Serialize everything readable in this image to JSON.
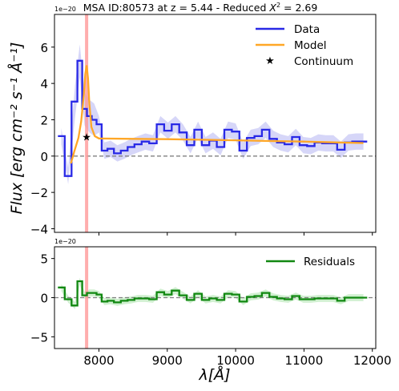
{
  "chart_data": [
    {
      "type": "line",
      "panel": "top",
      "title": "MSA ID:80573 at z = 5.44 - Reduced X² = 2.69",
      "title_main": "MSA ID:80573 at z = 5.44 - Reduced ",
      "title_chi": "X",
      "title_sup": "2",
      "title_end": " = 2.69",
      "offset_text": "1e−20",
      "ylabel": "Flux [erg cm⁻² s⁻¹ Å⁻¹]",
      "ylim": [
        -4.2,
        7.8
      ],
      "xlim": [
        7350,
        12050
      ],
      "y_ticks": [
        {
          "value": -4,
          "label": "−4"
        },
        {
          "value": -2,
          "label": "−2"
        },
        {
          "value": 0,
          "label": "0"
        },
        {
          "value": 2,
          "label": "2"
        },
        {
          "value": 4,
          "label": "4"
        },
        {
          "value": 6,
          "label": "6"
        }
      ],
      "reference_line_y": 0,
      "emission_line_x": 7820,
      "colors": {
        "data": "#2929e6",
        "model": "#ffa726",
        "band": "#c8c8f5",
        "emission": "#ff9999",
        "zero": "#808080"
      },
      "legend": [
        {
          "label": "Data",
          "kind": "line",
          "color": "#2929e6"
        },
        {
          "label": "Model",
          "kind": "line",
          "color": "#ffa726"
        },
        {
          "label": "Continuum",
          "kind": "star",
          "color": "#000000"
        }
      ],
      "series": [
        {
          "name": "Data",
          "style": "steps",
          "x": [
            7450,
            7550,
            7650,
            7720,
            7790,
            7860,
            7930,
            8000,
            8080,
            8170,
            8270,
            8370,
            8470,
            8570,
            8680,
            8790,
            8900,
            9010,
            9120,
            9230,
            9340,
            9450,
            9560,
            9670,
            9780,
            9890,
            10000,
            10110,
            10220,
            10330,
            10440,
            10550,
            10660,
            10770,
            10880,
            10990,
            11100,
            11210,
            11320,
            11430,
            11540,
            11650,
            11760,
            11870
          ],
          "y": [
            1.1,
            -1.1,
            3.0,
            5.25,
            2.6,
            2.2,
            2.0,
            1.75,
            0.3,
            0.4,
            0.15,
            0.3,
            0.5,
            0.65,
            0.8,
            0.7,
            1.75,
            1.4,
            1.75,
            1.3,
            0.6,
            1.45,
            0.6,
            0.85,
            0.5,
            1.45,
            1.35,
            0.3,
            1.0,
            1.1,
            1.45,
            0.95,
            0.75,
            0.65,
            1.05,
            0.6,
            0.55,
            0.75,
            0.7,
            0.7,
            0.35,
            0.75,
            0.8,
            0.8
          ]
        },
        {
          "name": "Model",
          "style": "line",
          "x": [
            7590,
            7640,
            7700,
            7740,
            7780,
            7800,
            7820,
            7840,
            7860,
            7890,
            7940,
            8000,
            8500,
            9000,
            9500,
            10000,
            10500,
            11000,
            11500,
            11870
          ],
          "y": [
            -0.4,
            0.25,
            1.0,
            1.9,
            3.4,
            4.5,
            5.0,
            4.3,
            2.9,
            1.6,
            1.1,
            0.97,
            0.95,
            0.93,
            0.9,
            0.87,
            0.83,
            0.8,
            0.75,
            0.72
          ]
        },
        {
          "name": "Continuum",
          "style": "marker",
          "x": [
            7820
          ],
          "y": [
            1.05
          ]
        }
      ]
    },
    {
      "type": "line",
      "panel": "bottom",
      "offset_text": "1e−20",
      "xlabel": "λ[Å]",
      "ylim": [
        -6.5,
        6.5
      ],
      "xlim": [
        7350,
        12050
      ],
      "x_ticks": [
        {
          "value": 8000,
          "label": "8000"
        },
        {
          "value": 9000,
          "label": "9000"
        },
        {
          "value": 10000,
          "label": "10000"
        },
        {
          "value": 11000,
          "label": "11000"
        },
        {
          "value": 12000,
          "label": "12000"
        }
      ],
      "y_ticks": [
        {
          "value": -5,
          "label": "−5"
        },
        {
          "value": 0,
          "label": "0"
        },
        {
          "value": 5,
          "label": "5"
        }
      ],
      "reference_line_y": 0,
      "emission_line_x": 7820,
      "colors": {
        "residuals": "#118811",
        "band": "#c5ecc5",
        "emission": "#ff9999",
        "zero": "#808080"
      },
      "legend": [
        {
          "label": "Residuals",
          "kind": "line",
          "color": "#118811"
        }
      ],
      "series": [
        {
          "name": "Residuals",
          "style": "steps",
          "x": [
            7450,
            7550,
            7650,
            7720,
            7790,
            7860,
            7930,
            8000,
            8080,
            8170,
            8270,
            8370,
            8470,
            8570,
            8680,
            8790,
            8900,
            9010,
            9120,
            9230,
            9340,
            9450,
            9560,
            9670,
            9780,
            9890,
            10000,
            10110,
            10220,
            10330,
            10440,
            10550,
            10660,
            10770,
            10880,
            10990,
            11100,
            11210,
            11320,
            11430,
            11540,
            11650,
            11760,
            11870
          ],
          "y": [
            1.3,
            -0.2,
            -1.0,
            2.1,
            0.3,
            0.6,
            0.6,
            0.4,
            -0.5,
            -0.4,
            -0.6,
            -0.4,
            -0.3,
            -0.1,
            -0.1,
            -0.2,
            0.7,
            0.4,
            0.9,
            0.3,
            -0.3,
            0.5,
            -0.3,
            -0.1,
            -0.3,
            0.5,
            0.4,
            -0.5,
            0.1,
            0.2,
            0.6,
            0.1,
            -0.1,
            -0.2,
            0.2,
            -0.2,
            -0.2,
            -0.1,
            -0.1,
            -0.1,
            -0.4,
            0.0,
            0.0,
            0.0
          ]
        }
      ]
    }
  ]
}
